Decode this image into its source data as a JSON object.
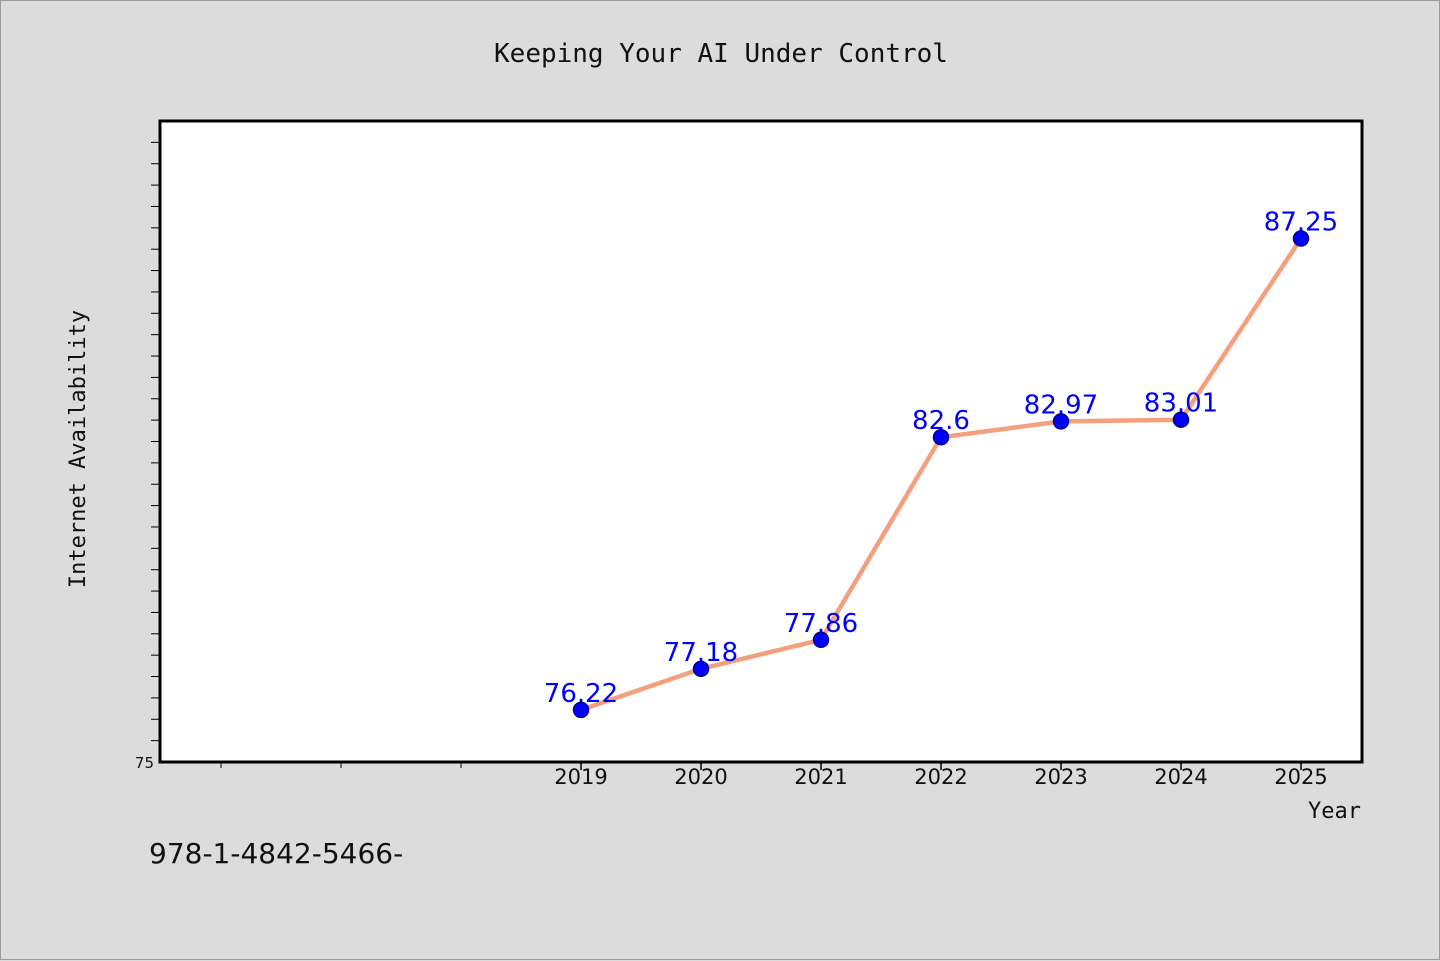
{
  "chart_data": {
    "type": "line",
    "title": "Keeping Your AI Under Control",
    "xlabel": "Year",
    "ylabel": "Internet Availability",
    "x": [
      "2019",
      "2020",
      "2021",
      "2022",
      "2023",
      "2024",
      "2025"
    ],
    "values": [
      76.22,
      77.18,
      77.86,
      82.6,
      82.97,
      83.01,
      87.25
    ],
    "data_labels": [
      "76.22",
      "77.18",
      "77.86",
      "82.6",
      "82.97",
      "83.01",
      "87.25"
    ],
    "y_tick_labels": [
      "75"
    ],
    "ylim": [
      75,
      90
    ],
    "grid": false,
    "legend": "none",
    "colors": {
      "line": "#f4a07e",
      "marker": "#0000ff",
      "marker_edge": "#00008b",
      "data_label": "#0000ff",
      "plot_bg": "#ffffff",
      "figure_bg": "#dcdcdc"
    }
  },
  "footer": {
    "text": "978-1-4842-5466-"
  }
}
